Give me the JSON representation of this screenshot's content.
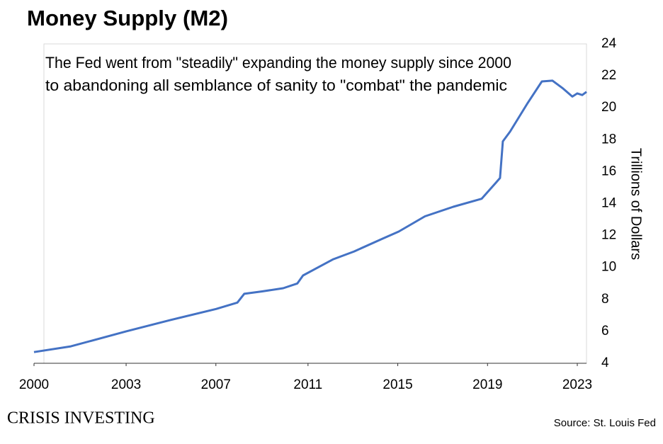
{
  "chart_data": {
    "type": "line",
    "title": "Money Supply (M2)",
    "annotation": [
      "The Fed went from \"steadily\" expanding the money supply since 2000",
      "to abandoning all semblance of sanity to \"combat\" the pandemic"
    ],
    "y_label": "Trillions of Dollars",
    "source": "Source: St. Louis Fed",
    "brand": "Crisis Investing",
    "x": [
      2000.0,
      2001.56,
      2003.9,
      2005.76,
      2007.71,
      2008.61,
      2008.9,
      2009.66,
      2010.55,
      2011.15,
      2011.39,
      2012.65,
      2013.55,
      2014.75,
      2015.44,
      2016.55,
      2017.75,
      2018.95,
      2019.55,
      2019.73,
      2019.85,
      2020.15,
      2020.9,
      2021.5,
      2021.95,
      2022.4,
      2022.79,
      2023.0,
      2023.21,
      2023.39
    ],
    "series": [
      {
        "name": "M2",
        "color": "#4472c4",
        "values": [
          4.7,
          5.06,
          6.0,
          6.7,
          7.4,
          7.8,
          8.35,
          8.5,
          8.7,
          9.0,
          9.5,
          10.5,
          11.0,
          11.8,
          12.25,
          13.2,
          13.8,
          14.3,
          15.3,
          15.6,
          17.9,
          18.5,
          20.3,
          21.65,
          21.7,
          21.2,
          20.7,
          20.9,
          20.8,
          21.0
        ]
      }
    ],
    "xlim": [
      2000,
      2023.39
    ],
    "xticks": [
      2000,
      {
        "value": 2003.9,
        "label": "2003"
      },
      {
        "value": 2007.7,
        "label": "2007"
      },
      {
        "value": 2011.6,
        "label": "2011"
      },
      {
        "value": 2015.4,
        "label": "2015"
      },
      {
        "value": 2019.2,
        "label": "2019"
      },
      2023
    ],
    "ylim": [
      4,
      24
    ],
    "yticks": [
      4,
      6,
      8,
      10,
      12,
      14,
      16,
      18,
      20,
      22,
      24
    ],
    "grid": false
  }
}
